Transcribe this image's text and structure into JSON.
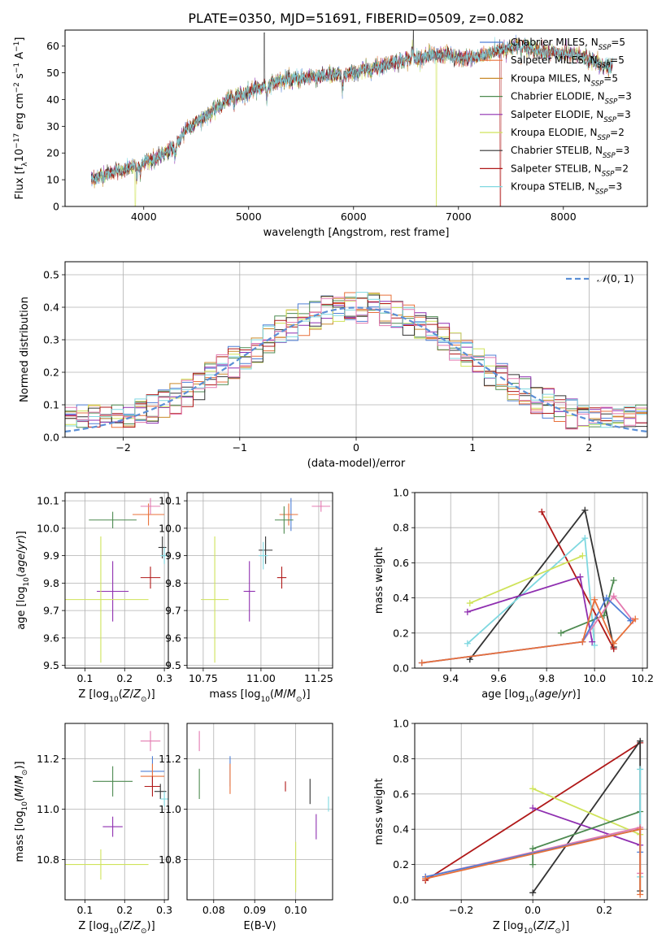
{
  "figure_title": "PLATE=0350, MJD=51691, FIBERID=0509, z=0.082",
  "colors": {
    "Chabrier MILES": "#4f7fd6",
    "Salpeter MILES": "#e8703a",
    "Kroupa MILES": "#c98a2a",
    "Chabrier ELODIE": "#4d8a50",
    "Salpeter ELODIE": "#8f2fb0",
    "Kroupa ELODIE": "#cfe35a",
    "Chabrier STELIB": "#333333",
    "Salpeter STELIB": "#b01818",
    "Kroupa STELIB": "#7fd8e0",
    "pink": "#e37ab0",
    "normal": "#5b8fd6",
    "grid": "#b0b0b0"
  },
  "chart_data": [
    {
      "id": "spectrum",
      "type": "line",
      "xlabel": "wavelength [Angstrom, rest frame]",
      "ylabel": "Flux [f_λ10^-17 erg cm^-2 s^-1 A^-1]",
      "xlim": [
        3250,
        8800
      ],
      "ylim": [
        0,
        66
      ],
      "xticks": [
        4000,
        5000,
        6000,
        7000,
        8000
      ],
      "yticks": [
        0,
        10,
        20,
        30,
        40,
        50,
        60
      ],
      "grid": false,
      "legend_position": "top-right",
      "continuum": [
        [
          3500,
          10
        ],
        [
          3700,
          13
        ],
        [
          3850,
          14
        ],
        [
          3950,
          16
        ],
        [
          4050,
          17
        ],
        [
          4150,
          19
        ],
        [
          4300,
          22
        ],
        [
          4400,
          29
        ],
        [
          4600,
          34
        ],
        [
          4800,
          40
        ],
        [
          5000,
          43
        ],
        [
          5150,
          45
        ],
        [
          5300,
          47
        ],
        [
          5500,
          48
        ],
        [
          5700,
          49
        ],
        [
          5900,
          49
        ],
        [
          6100,
          51
        ],
        [
          6300,
          53
        ],
        [
          6500,
          55
        ],
        [
          6700,
          56
        ],
        [
          6900,
          57
        ],
        [
          7000,
          55
        ],
        [
          7200,
          56
        ],
        [
          7400,
          59
        ],
        [
          7600,
          60
        ],
        [
          7800,
          58
        ],
        [
          8000,
          57
        ],
        [
          8200,
          56
        ],
        [
          8400,
          52
        ],
        [
          8470,
          53
        ]
      ],
      "series": [
        {
          "name": "Chabrier MILES, N_SSP=5",
          "label_main": "Chabrier MILES, N",
          "label_sub": "SSP",
          "label_end": "=5"
        },
        {
          "name": "Salpeter MILES, N_SSP=5",
          "label_main": "Salpeter MILES, N",
          "label_sub": "SSP",
          "label_end": "=5"
        },
        {
          "name": "Kroupa MILES, N_SSP=5",
          "label_main": "Kroupa MILES, N",
          "label_sub": "SSP",
          "label_end": "=5"
        },
        {
          "name": "Chabrier ELODIE, N_SSP=3",
          "label_main": "Chabrier ELODIE, N",
          "label_sub": "SSP",
          "label_end": "=3"
        },
        {
          "name": "Salpeter ELODIE, N_SSP=3",
          "label_main": "Salpeter ELODIE, N",
          "label_sub": "SSP",
          "label_end": "=3"
        },
        {
          "name": "Kroupa ELODIE, N_SSP=2",
          "label_main": "Kroupa ELODIE, N",
          "label_sub": "SSP",
          "label_end": "=2"
        },
        {
          "name": "Chabrier STELIB, N_SSP=3",
          "label_main": "Chabrier STELIB, N",
          "label_sub": "SSP",
          "label_end": "=3"
        },
        {
          "name": "Salpeter STELIB, N_SSP=2",
          "label_main": "Salpeter STELIB, N",
          "label_sub": "SSP",
          "label_end": "=2"
        },
        {
          "name": "Kroupa STELIB, N_SSP=3",
          "label_main": "Kroupa STELIB, N",
          "label_sub": "SSP",
          "label_end": "=3"
        }
      ]
    },
    {
      "id": "residuals",
      "type": "histogram",
      "xlabel": "(data-model)/error",
      "ylabel": "Normed distribution",
      "xlim": [
        -2.5,
        2.5
      ],
      "ylim": [
        0,
        0.54
      ],
      "xticks": [
        -2,
        -1,
        0,
        1,
        2
      ],
      "yticks": [
        0.0,
        0.1,
        0.2,
        0.3,
        0.4,
        0.5
      ],
      "grid": true,
      "legend_position": "top-right",
      "reference_label": "N(0,1)",
      "reference_label_parts": [
        "𝒩",
        "(0, 1)"
      ],
      "bin_width": 0.1
    },
    {
      "id": "age_vs_Z",
      "type": "errorbar",
      "xlabel": "Z [log10(Z/Z⊙)]",
      "ylabel": "age [log10(age/yr)]",
      "xlim": [
        0.05,
        0.31
      ],
      "ylim": [
        9.49,
        10.13
      ],
      "xticks": [
        0.1,
        0.2,
        0.3
      ],
      "yticks": [
        9.5,
        9.6,
        9.7,
        9.8,
        9.9,
        10.0,
        10.1
      ],
      "points": [
        {
          "c": "Chabrier ELODIE",
          "x": 0.17,
          "xe": 0.06,
          "y": 10.03,
          "ye": 0.03
        },
        {
          "c": "Salpeter MILES",
          "x": 0.26,
          "xe": 0.04,
          "y": 10.05,
          "ye": 0.04
        },
        {
          "c": "pink",
          "x": 0.265,
          "xe": 0.025,
          "y": 10.08,
          "ye": 0.03
        },
        {
          "c": "Chabrier STELIB",
          "x": 0.295,
          "xe": 0.01,
          "y": 9.93,
          "ye": 0.04
        },
        {
          "c": "Salpeter STELIB",
          "x": 0.265,
          "xe": 0.025,
          "y": 9.82,
          "ye": 0.04
        },
        {
          "c": "Kroupa STELIB",
          "x": 0.3,
          "xe": 0.01,
          "y": 9.9,
          "ye": 0.03
        },
        {
          "c": "Salpeter ELODIE",
          "x": 0.17,
          "xe": 0.04,
          "y": 9.77,
          "ye": 0.11
        },
        {
          "c": "Kroupa ELODIE",
          "x": 0.14,
          "xe": 0.12,
          "y": 9.74,
          "ye": 0.23
        }
      ]
    },
    {
      "id": "age_vs_mass",
      "type": "errorbar",
      "xlabel": "mass [log10(M/M⊙)]",
      "ylabel": "",
      "xlim": [
        10.68,
        11.31
      ],
      "ylim": [
        9.49,
        10.13
      ],
      "xticks": [
        10.75,
        11.0,
        11.25
      ],
      "yticks": [
        9.5,
        9.6,
        9.7,
        9.8,
        9.9,
        10.0,
        10.1
      ],
      "points": [
        {
          "c": "pink",
          "x": 11.26,
          "xe": 0.04,
          "y": 10.08,
          "ye": 0.02
        },
        {
          "c": "Chabrier MILES",
          "x": 11.13,
          "xe": 0.03,
          "y": 10.05,
          "ye": 0.06
        },
        {
          "c": "Salpeter MILES",
          "x": 11.12,
          "xe": 0.04,
          "y": 10.05,
          "ye": 0.04
        },
        {
          "c": "Chabrier ELODIE",
          "x": 11.1,
          "xe": 0.04,
          "y": 10.03,
          "ye": 0.05
        },
        {
          "c": "Chabrier STELIB",
          "x": 11.02,
          "xe": 0.03,
          "y": 9.92,
          "ye": 0.05
        },
        {
          "c": "Kroupa STELIB",
          "x": 11.01,
          "xe": 0.02,
          "y": 9.9,
          "ye": 0.05
        },
        {
          "c": "Salpeter STELIB",
          "x": 11.09,
          "xe": 0.02,
          "y": 9.82,
          "ye": 0.04
        },
        {
          "c": "Salpeter ELODIE",
          "x": 10.95,
          "xe": 0.025,
          "y": 9.77,
          "ye": 0.11
        },
        {
          "c": "Kroupa ELODIE",
          "x": 10.8,
          "xe": 0.06,
          "y": 9.74,
          "ye": 0.23
        }
      ]
    },
    {
      "id": "weight_vs_age",
      "type": "line",
      "xlabel": "age [log10(age/yr)]",
      "ylabel": "mass weight",
      "xlim": [
        9.25,
        10.22
      ],
      "ylim": [
        0.0,
        1.0
      ],
      "xticks": [
        9.4,
        9.6,
        9.8,
        10.0,
        10.2
      ],
      "yticks": [
        0.0,
        0.2,
        0.4,
        0.6,
        0.8,
        1.0
      ],
      "grid": true,
      "series": [
        {
          "c": "Chabrier STELIB",
          "points": [
            [
              9.48,
              0.05
            ],
            [
              9.96,
              0.9
            ],
            [
              10.08,
              0.12
            ]
          ]
        },
        {
          "c": "Salpeter STELIB",
          "points": [
            [
              9.78,
              0.89
            ],
            [
              10.08,
              0.11
            ]
          ]
        },
        {
          "c": "Kroupa STELIB",
          "points": [
            [
              9.47,
              0.14
            ],
            [
              9.96,
              0.74
            ],
            [
              10.0,
              0.13
            ]
          ]
        },
        {
          "c": "Kroupa ELODIE",
          "points": [
            [
              9.48,
              0.37
            ],
            [
              9.95,
              0.64
            ]
          ]
        },
        {
          "c": "Salpeter ELODIE",
          "points": [
            [
              9.47,
              0.32
            ],
            [
              9.94,
              0.52
            ],
            [
              9.99,
              0.15
            ]
          ]
        },
        {
          "c": "Chabrier ELODIE",
          "points": [
            [
              9.86,
              0.2
            ],
            [
              10.04,
              0.3
            ],
            [
              10.08,
              0.5
            ]
          ]
        },
        {
          "c": "pink",
          "points": [
            [
              9.28,
              0.03
            ],
            [
              9.95,
              0.15
            ],
            [
              10.08,
              0.41
            ],
            [
              10.16,
              0.27
            ]
          ]
        },
        {
          "c": "Chabrier MILES",
          "points": [
            [
              9.28,
              0.03
            ],
            [
              9.95,
              0.15
            ],
            [
              10.05,
              0.4
            ],
            [
              10.15,
              0.27
            ]
          ]
        },
        {
          "c": "Salpeter MILES",
          "points": [
            [
              9.28,
              0.03
            ],
            [
              9.95,
              0.15
            ],
            [
              10.0,
              0.39
            ],
            [
              10.08,
              0.14
            ],
            [
              10.17,
              0.28
            ]
          ]
        }
      ]
    },
    {
      "id": "mass_vs_Z",
      "type": "errorbar",
      "xlabel": "Z [log10(Z/Z⊙)]",
      "ylabel": "mass [log10(M/M⊙)]",
      "xlim": [
        0.05,
        0.31
      ],
      "ylim": [
        10.64,
        11.34
      ],
      "xticks": [
        0.1,
        0.2,
        0.3
      ],
      "yticks": [
        10.8,
        11.0,
        11.2
      ],
      "points": [
        {
          "c": "pink",
          "x": 0.265,
          "xe": 0.025,
          "y": 11.27,
          "ye": 0.04
        },
        {
          "c": "Chabrier MILES",
          "x": 0.27,
          "xe": 0.03,
          "y": 11.15,
          "ye": 0.06
        },
        {
          "c": "Salpeter MILES",
          "x": 0.27,
          "xe": 0.03,
          "y": 11.13,
          "ye": 0.05
        },
        {
          "c": "Chabrier ELODIE",
          "x": 0.17,
          "xe": 0.05,
          "y": 11.11,
          "ye": 0.06
        },
        {
          "c": "Salpeter STELIB",
          "x": 0.27,
          "xe": 0.02,
          "y": 11.09,
          "ye": 0.04
        },
        {
          "c": "Chabrier STELIB",
          "x": 0.29,
          "xe": 0.015,
          "y": 11.07,
          "ye": 0.03
        },
        {
          "c": "Kroupa STELIB",
          "x": 0.3,
          "xe": 0.01,
          "y": 11.04,
          "ye": 0.03
        },
        {
          "c": "Salpeter ELODIE",
          "x": 0.17,
          "xe": 0.025,
          "y": 10.93,
          "ye": 0.04
        },
        {
          "c": "Kroupa ELODIE",
          "x": 0.14,
          "xe": 0.12,
          "y": 10.78,
          "ye": 0.06
        }
      ]
    },
    {
      "id": "mass_vs_ebv",
      "type": "errorbar",
      "xlabel": "E(B-V)",
      "ylabel": "",
      "xlim": [
        0.0735,
        0.109
      ],
      "ylim": [
        10.64,
        11.34
      ],
      "xticks": [
        0.08,
        0.09,
        0.1
      ],
      "yticks": [
        10.8,
        11.0,
        11.2
      ],
      "points": [
        {
          "c": "pink",
          "x": 0.0765,
          "xe": 0,
          "y": 11.27,
          "ye": 0.04
        },
        {
          "c": "Chabrier ELODIE",
          "x": 0.0765,
          "xe": 0,
          "y": 11.1,
          "ye": 0.06
        },
        {
          "c": "Chabrier MILES",
          "x": 0.084,
          "xe": 0,
          "y": 11.15,
          "ye": 0.06
        },
        {
          "c": "Salpeter MILES",
          "x": 0.084,
          "xe": 0,
          "y": 11.12,
          "ye": 0.06
        },
        {
          "c": "Salpeter STELIB",
          "x": 0.0975,
          "xe": 0,
          "y": 11.09,
          "ye": 0.02
        },
        {
          "c": "Chabrier STELIB",
          "x": 0.1035,
          "xe": 0,
          "y": 11.07,
          "ye": 0.05
        },
        {
          "c": "Kroupa STELIB",
          "x": 0.108,
          "xe": 0,
          "y": 11.02,
          "ye": 0.03
        },
        {
          "c": "Salpeter ELODIE",
          "x": 0.105,
          "xe": 0,
          "y": 10.93,
          "ye": 0.05
        },
        {
          "c": "Kroupa ELODIE",
          "x": 0.1,
          "xe": 0,
          "y": 10.77,
          "ye": 0.1
        }
      ]
    },
    {
      "id": "weight_vs_Z",
      "type": "line",
      "xlabel": "Z [log10(Z/Z⊙)]",
      "ylabel": "mass weight",
      "xlim": [
        -0.33,
        0.32
      ],
      "ylim": [
        0.0,
        1.0
      ],
      "xticks": [
        -0.2,
        0.0,
        0.2
      ],
      "yticks": [
        0.0,
        0.2,
        0.4,
        0.6,
        0.8,
        1.0
      ],
      "grid": true,
      "series": [
        {
          "c": "Salpeter STELIB",
          "points": [
            [
              -0.3,
              0.11
            ],
            [
              0.3,
              0.89
            ]
          ]
        },
        {
          "c": "Chabrier STELIB",
          "points": [
            [
              0.0,
              0.04
            ],
            [
              0.3,
              0.9
            ],
            [
              0.3,
              0.05
            ]
          ]
        },
        {
          "c": "Kroupa ELODIE",
          "points": [
            [
              0.0,
              0.63
            ],
            [
              0.3,
              0.37
            ]
          ]
        },
        {
          "c": "Salpeter ELODIE",
          "points": [
            [
              0.0,
              0.52
            ],
            [
              0.3,
              0.31
            ]
          ]
        },
        {
          "c": "Chabrier ELODIE",
          "points": [
            [
              0.0,
              0.2
            ],
            [
              0.0,
              0.29
            ],
            [
              0.3,
              0.5
            ]
          ]
        },
        {
          "c": "Kroupa STELIB",
          "points": [
            [
              0.3,
              0.74
            ],
            [
              0.3,
              0.13
            ]
          ]
        },
        {
          "c": "pink",
          "points": [
            [
              -0.3,
              0.13
            ],
            [
              0.3,
              0.41
            ],
            [
              0.3,
              0.15
            ]
          ]
        },
        {
          "c": "Chabrier MILES",
          "points": [
            [
              -0.3,
              0.13
            ],
            [
              0.3,
              0.4
            ],
            [
              0.3,
              0.27
            ]
          ]
        },
        {
          "c": "Salpeter MILES",
          "points": [
            [
              -0.3,
              0.12
            ],
            [
              0.3,
              0.4
            ],
            [
              0.3,
              0.03
            ]
          ]
        }
      ]
    }
  ]
}
